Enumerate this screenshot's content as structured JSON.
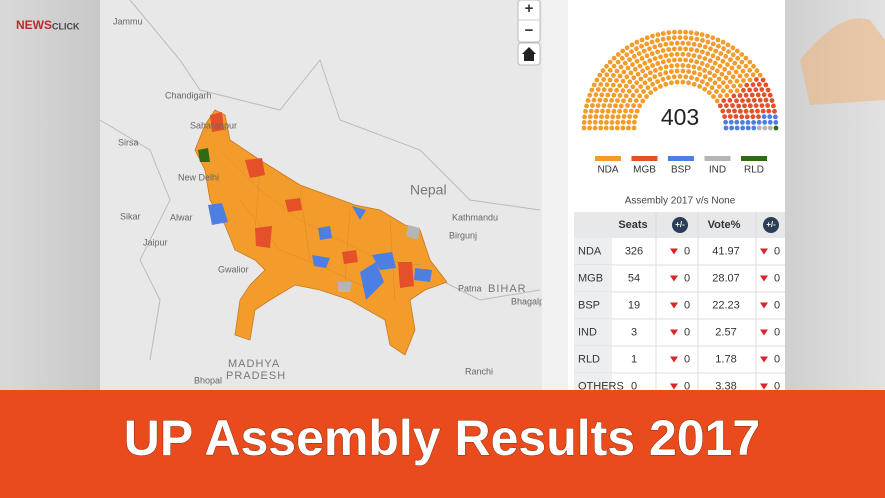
{
  "logo": {
    "part1": "NEWS",
    "part2": "CLICK"
  },
  "map": {
    "zoom_in": "+",
    "zoom_out": "−",
    "labels": [
      "Jammu",
      "Chandigarh",
      "Saharanpur",
      "Sirsa",
      "New Delhi",
      "Sikar",
      "Alwar",
      "Jaipur",
      "Gwalior",
      "Nepal",
      "Kathmandu",
      "Birgunj",
      "Patna",
      "BIHAR",
      "Bhagalpur",
      "MADHYA",
      "PRADESH",
      "Bhopal",
      "Ranchi"
    ]
  },
  "seat_chart": {
    "total": 403
  },
  "legend": [
    {
      "name": "NDA",
      "color": "#f39c2b"
    },
    {
      "name": "MGB",
      "color": "#e4502a"
    },
    {
      "name": "BSP",
      "color": "#4d7fe3"
    },
    {
      "name": "IND",
      "color": "#b5b5b5"
    },
    {
      "name": "RLD",
      "color": "#2f6b12"
    }
  ],
  "table": {
    "title": "Assembly 2017 v/s None",
    "headers": [
      "Seats",
      "+/-",
      "Vote%",
      "+/-"
    ],
    "rows": [
      {
        "party": "NDA",
        "seats": 326,
        "seats_change": 0,
        "vote": 41.97,
        "vote_change": 0
      },
      {
        "party": "MGB",
        "seats": 54,
        "seats_change": 0,
        "vote": 28.07,
        "vote_change": 0
      },
      {
        "party": "BSP",
        "seats": 19,
        "seats_change": 0,
        "vote": 22.23,
        "vote_change": 0
      },
      {
        "party": "IND",
        "seats": 3,
        "seats_change": 0,
        "vote": 2.57,
        "vote_change": 0
      },
      {
        "party": "RLD",
        "seats": 1,
        "seats_change": 0,
        "vote": 1.78,
        "vote_change": 0
      },
      {
        "party": "OTHERS",
        "seats": 0,
        "seats_change": 0,
        "vote": 3.38,
        "vote_change": 0
      }
    ]
  },
  "banner": {
    "title": "UP Assembly Results 2017"
  }
}
